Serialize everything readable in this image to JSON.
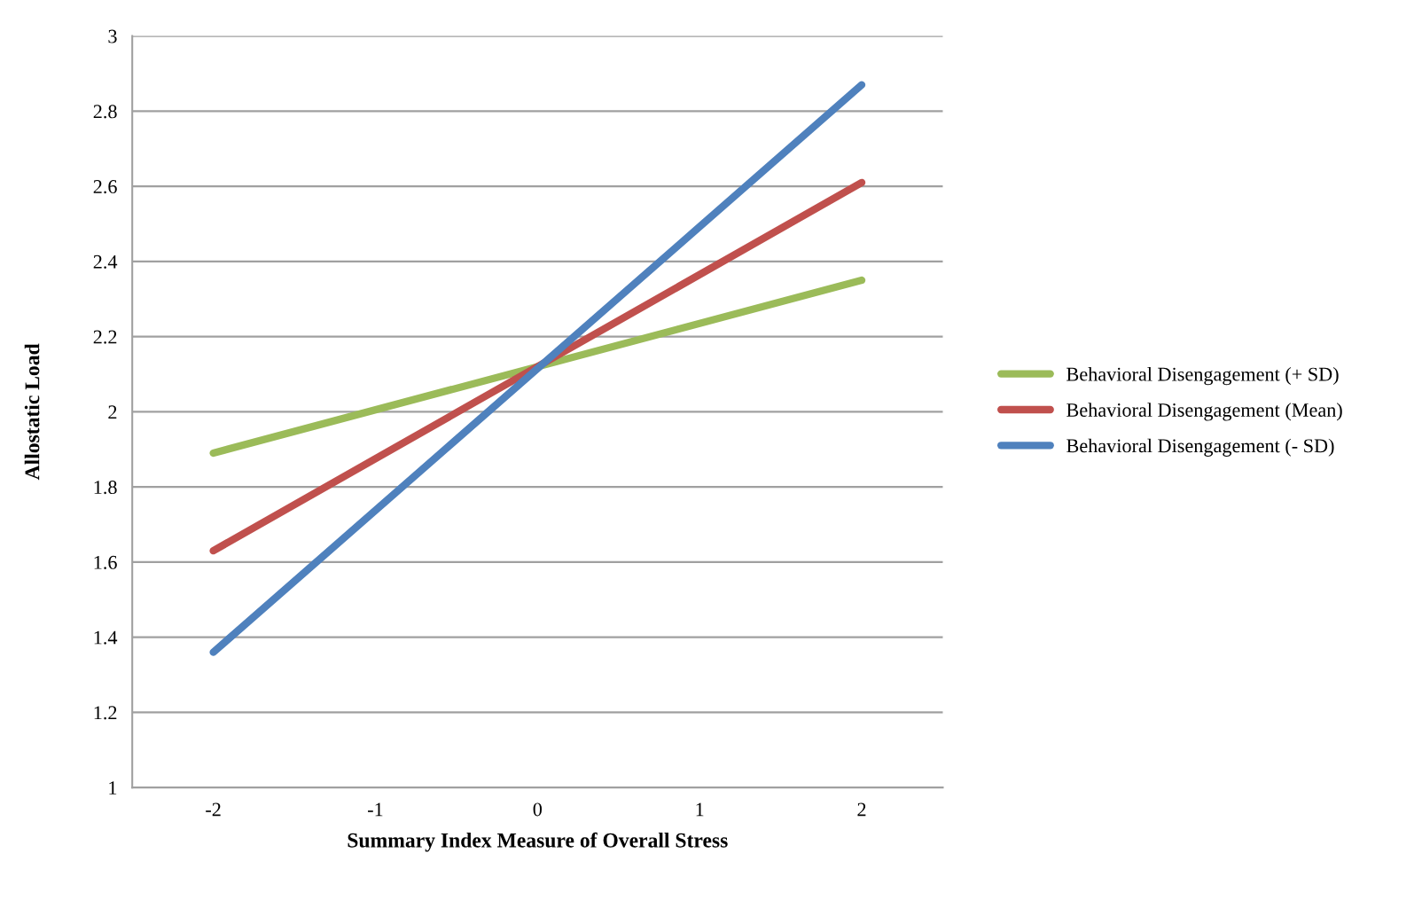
{
  "chart_data": {
    "type": "line",
    "xlabel": "Summary Index Measure of Overall Stress",
    "ylabel": "Allostatic Load",
    "x": [
      -2,
      2
    ],
    "series": [
      {
        "name": "Behavioral Disengagement (+ SD)",
        "color": "#9bbb59",
        "values": [
          1.89,
          2.35
        ]
      },
      {
        "name": "Behavioral Disengagement (Mean)",
        "color": "#c0504d",
        "values": [
          1.63,
          2.61
        ]
      },
      {
        "name": "Behavioral Disengagement (- SD)",
        "color": "#4f81bd",
        "values": [
          1.36,
          2.87
        ]
      }
    ],
    "xlim": [
      -2.5,
      2.5
    ],
    "xticks": [
      -2,
      -1,
      0,
      1,
      2
    ],
    "ylim": [
      1,
      3
    ],
    "yticks": [
      1,
      1.2,
      1.4,
      1.6,
      1.8,
      2,
      2.2,
      2.4,
      2.6,
      2.8,
      3
    ],
    "grid": "y",
    "legend": "right",
    "marker": "none",
    "line_style": "solid"
  }
}
